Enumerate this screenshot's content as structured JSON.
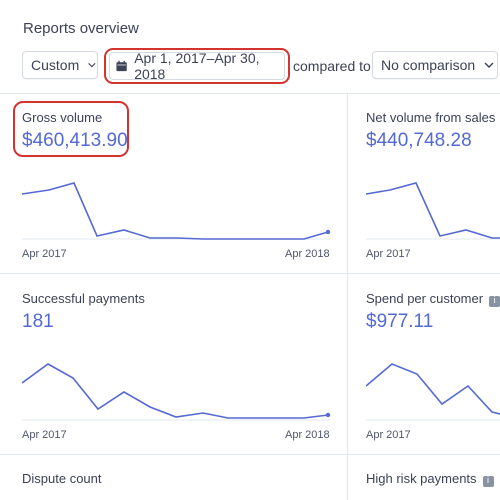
{
  "header": {
    "title": "Reports overview"
  },
  "filters": {
    "period_select": "Custom",
    "date_range": "Apr 1, 2017–Apr 30, 2018",
    "compared_to_label": "compared to",
    "comparison_select": "No comparison"
  },
  "colors": {
    "accent": "#5469d4",
    "highlight": "#d4342f",
    "border": "#e3e8ee"
  },
  "cards": [
    {
      "label": "Gross volume",
      "value": "$460,413.90",
      "axis_start": "Apr 2017",
      "axis_end": "Apr 2018",
      "info_icon": false
    },
    {
      "label": "Net volume from sales",
      "value": "$440,748.28",
      "axis_start": "Apr 2017",
      "axis_end": "",
      "info_icon": false
    },
    {
      "label": "Successful payments",
      "value": "181",
      "axis_start": "Apr 2017",
      "axis_end": "Apr 2018",
      "info_icon": false
    },
    {
      "label": "Spend per customer",
      "value": "$977.11",
      "axis_start": "Apr 2017",
      "axis_end": "",
      "info_icon": true
    },
    {
      "label": "Dispute count",
      "value": "",
      "axis_start": "",
      "axis_end": "",
      "info_icon": false
    },
    {
      "label": "High risk payments",
      "value": "",
      "axis_start": "",
      "axis_end": "",
      "info_icon": true
    }
  ]
}
